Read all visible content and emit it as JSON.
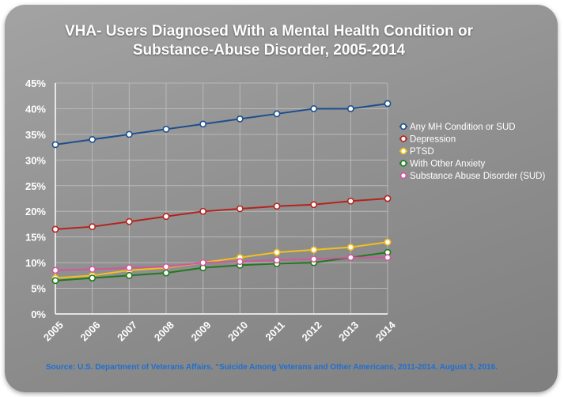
{
  "title": "VHA- Users Diagnosed With a Mental Health Condition or Substance-Abuse Disorder, 2005-2014",
  "source": "Source: U.S. Department of Veterans Affairs. “Suicide Among Veterans and Other Americans, 2011-2014. August 3, 2016.",
  "chart_data": {
    "type": "line",
    "title": "VHA- Users Diagnosed With a Mental Health Condition or Substance-Abuse Disorder, 2005-2014",
    "x": [
      "2005",
      "2006",
      "2007",
      "2008",
      "2009",
      "2010",
      "2011",
      "2012",
      "2013",
      "2014"
    ],
    "ylim": [
      0,
      45
    ],
    "yticks": [
      "0%",
      "5%",
      "10%",
      "15%",
      "20%",
      "25%",
      "30%",
      "35%",
      "40%",
      "45%"
    ],
    "xlabel": "",
    "ylabel": "",
    "grid": true,
    "legend_position": "right",
    "series": [
      {
        "name": "Any MH Condition or SUD",
        "color": "#1d4f8c",
        "values": [
          33,
          34,
          35,
          36,
          37,
          38,
          39,
          40,
          40,
          41
        ]
      },
      {
        "name": "Depression",
        "color": "#b3241d",
        "values": [
          16.5,
          17,
          18,
          19,
          20,
          20.5,
          21,
          21.3,
          22,
          22.5
        ]
      },
      {
        "name": "PTSD",
        "color": "#f2c01e",
        "values": [
          7,
          7.5,
          8.5,
          9,
          10,
          11,
          12,
          12.5,
          13,
          14
        ]
      },
      {
        "name": "With Other Anxiety",
        "color": "#1f7a1f",
        "values": [
          6.5,
          7,
          7.5,
          8,
          9,
          9.5,
          9.8,
          10,
          11,
          12
        ]
      },
      {
        "name": "Substance Abuse Disorder (SUD)",
        "color": "#d0579c",
        "values": [
          8.5,
          8.7,
          9,
          9.2,
          10,
          10.2,
          10.5,
          10.7,
          11,
          11
        ]
      }
    ]
  }
}
